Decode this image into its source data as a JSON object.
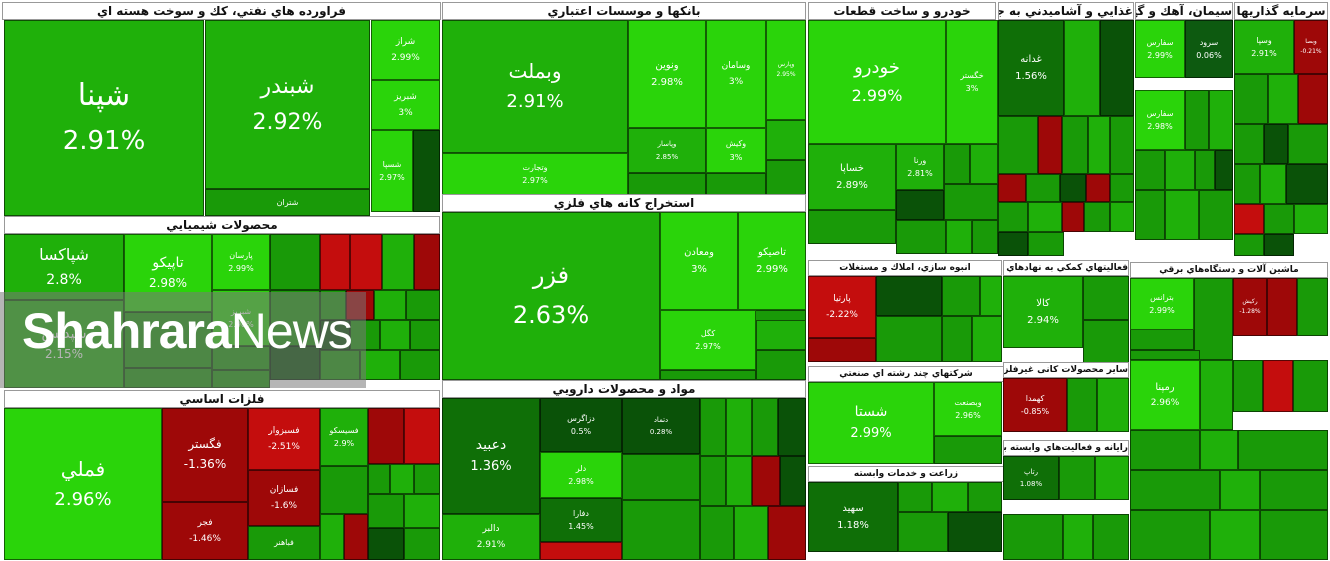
{
  "watermark": {
    "brand_bold": "Shahrara",
    "brand_light": "News"
  },
  "colors": {
    "up_strong": "#2ad40a",
    "up": "#1fb00a",
    "up_mid": "#199a08",
    "up_dark": "#0f6f07",
    "up_deep": "#0a5208",
    "flat": "#0d5a10",
    "down": "#9e0808",
    "down_strong": "#c40d0d"
  },
  "chart_data": {
    "type": "treemap",
    "sectors": [
      {
        "name": "فراورده هاي نفتي، كك و سوخت هسته اي",
        "tiles": [
          {
            "symbol": "شپنا",
            "change": "2.91%"
          },
          {
            "symbol": "شبندر",
            "change": "2.92%"
          },
          {
            "symbol": "شتران",
            "change": ""
          },
          {
            "symbol": "شراز",
            "change": "2.99%"
          },
          {
            "symbol": "شبريز",
            "change": "3%"
          },
          {
            "symbol": "شسپا",
            "change": "2.97%"
          }
        ]
      },
      {
        "name": "بانكها و موسسات اعتباري",
        "tiles": [
          {
            "symbol": "وبملت",
            "change": "2.91%"
          },
          {
            "symbol": "وتجارت",
            "change": "2.97%"
          },
          {
            "symbol": "ونوين",
            "change": "2.98%"
          },
          {
            "symbol": "وسامان",
            "change": "3%"
          },
          {
            "symbol": "وپارس",
            "change": "2.95%"
          },
          {
            "symbol": "وپاسار",
            "change": "2.85%"
          },
          {
            "symbol": "وكيش",
            "change": "3%"
          }
        ]
      },
      {
        "name": "خودرو و ساخت قطعات",
        "tiles": [
          {
            "symbol": "خودرو",
            "change": "2.99%"
          },
          {
            "symbol": "خگستر",
            "change": "3%"
          },
          {
            "symbol": "خساپا",
            "change": "2.89%"
          },
          {
            "symbol": "ورنا",
            "change": "2.81%"
          }
        ]
      },
      {
        "name": "غذايي و آشاميدني به جز قند و شكر",
        "tiles": [
          {
            "symbol": "غدانه",
            "change": "1.56%"
          }
        ]
      },
      {
        "name": "سيمان، آهك و گچ",
        "tiles": [
          {
            "symbol": "سفارس",
            "change": "2.99%"
          },
          {
            "symbol": "سرود",
            "change": "0.06%"
          },
          {
            "symbol": "سفارس",
            "change": "2.98%"
          }
        ]
      },
      {
        "name": "سرمايه گذاريها",
        "tiles": [
          {
            "symbol": "وسپا",
            "change": "2.91%"
          },
          {
            "symbol": "وبصا",
            "change": "-0.21%"
          }
        ]
      },
      {
        "name": "محصولات شيميايي",
        "tiles": [
          {
            "symbol": "شپاكسا",
            "change": "2.8%"
          },
          {
            "symbol": "تاپيكو",
            "change": "2.98%"
          },
          {
            "symbol": "پارسان",
            "change": "2.99%"
          },
          {
            "symbol": "شپديس",
            "change": "2.15%"
          },
          {
            "symbol": "شبريز",
            "change": "2.98%"
          }
        ]
      },
      {
        "name": "استخراج كانه هاي فلزي",
        "tiles": [
          {
            "symbol": "فزر",
            "change": "2.63%"
          },
          {
            "symbol": "ومعادن",
            "change": "3%"
          },
          {
            "symbol": "تاصيكو",
            "change": "2.99%"
          },
          {
            "symbol": "كگل",
            "change": "2.97%"
          }
        ]
      },
      {
        "name": "فلزات اساسي",
        "tiles": [
          {
            "symbol": "فملي",
            "change": "2.96%"
          },
          {
            "symbol": "فگستر",
            "change": "-1.36%"
          },
          {
            "symbol": "فجر",
            "change": "-1.46%"
          },
          {
            "symbol": "فسبزوار",
            "change": "-2.51%"
          },
          {
            "symbol": "فسازان",
            "change": "-1.6%"
          },
          {
            "symbol": "فباهنر",
            "change": ""
          },
          {
            "symbol": "فسيسكو",
            "change": "2.9%"
          }
        ]
      },
      {
        "name": "مواد و محصولات دارويي",
        "tiles": [
          {
            "symbol": "دعبيد",
            "change": "1.36%"
          },
          {
            "symbol": "دالبر",
            "change": "2.91%"
          },
          {
            "symbol": "دزاگرس",
            "change": "0.5%"
          },
          {
            "symbol": "دلر",
            "change": "2.98%"
          },
          {
            "symbol": "دفارا",
            "change": "1.45%"
          },
          {
            "symbol": "دتماد",
            "change": "0.28%"
          }
        ]
      },
      {
        "name": "انبوه سازي، املاك و مستغلات",
        "tiles": [
          {
            "symbol": "پارتيا",
            "change": "-2.22%"
          }
        ]
      },
      {
        "name": "فعاليتهاي كمكي به نهادهاي مالي واسط",
        "tiles": [
          {
            "symbol": "كالا",
            "change": "2.94%"
          }
        ]
      },
      {
        "name": "شركتهاي چند رشته اي صنعتي",
        "tiles": [
          {
            "symbol": "شستا",
            "change": "2.99%"
          },
          {
            "symbol": "وبصنعت",
            "change": "2.96%"
          }
        ]
      },
      {
        "name": "زراعت و خدمات وابسته",
        "tiles": [
          {
            "symbol": "سهيد",
            "change": "1.18%"
          }
        ]
      },
      {
        "name": "سایر محصولات کانی غیرفلزی",
        "tiles": [
          {
            "symbol": "كهمدا",
            "change": "-0.85%"
          }
        ]
      },
      {
        "name": "رايانه و فعاليت‌هاي وابسته به آن",
        "tiles": [
          {
            "symbol": "رتاپ",
            "change": "1.08%"
          }
        ]
      },
      {
        "name": "ماشين آلات و دستگاه‌هاي برقي",
        "tiles": [
          {
            "symbol": "بترانس",
            "change": "2.99%"
          },
          {
            "symbol": "رمپنا",
            "change": "2.96%"
          },
          {
            "symbol": "ركيش",
            "change": "-1.28%"
          }
        ]
      }
    ]
  }
}
